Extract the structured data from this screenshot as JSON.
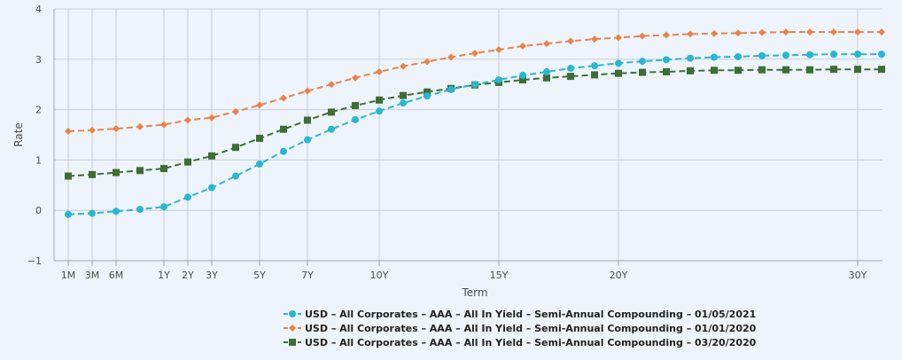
{
  "chart_data": {
    "type": "line",
    "xlabel": "Term",
    "ylabel": "Rate",
    "ylim": [
      -1,
      4
    ],
    "yticks": [
      -1,
      0,
      1,
      2,
      3,
      4
    ],
    "x_tick_labels": [
      "1M",
      "3M",
      "6M",
      "1Y",
      "2Y",
      "3Y",
      "5Y",
      "7Y",
      "10Y",
      "15Y",
      "20Y",
      "30Y"
    ],
    "grid": true,
    "legend_position": "bottom",
    "series": [
      {
        "name": "USD – All Corporates – AAA – All In Yield – Semi-Annual Compounding – 01/05/2021",
        "color": "#29b6d1",
        "marker": "circle",
        "values": [
          -0.08,
          -0.06,
          -0.02,
          0.02,
          0.07,
          0.26,
          0.45,
          0.68,
          0.92,
          1.17,
          1.4,
          1.61,
          1.8,
          1.97,
          2.13,
          2.27,
          2.4,
          2.5,
          2.59,
          2.68,
          2.75,
          2.82,
          2.87,
          2.92,
          2.96,
          2.99,
          3.02,
          3.04,
          3.05,
          3.07,
          3.08,
          3.09,
          3.1,
          3.1,
          3.1
        ]
      },
      {
        "name": "USD – All Corporates – AAA – All In Yield – Semi-Annual Compounding – 01/01/2020",
        "color": "#e8834a",
        "marker": "diamond",
        "values": [
          1.57,
          1.59,
          1.62,
          1.66,
          1.7,
          1.79,
          1.84,
          1.96,
          2.09,
          2.23,
          2.37,
          2.5,
          2.63,
          2.75,
          2.86,
          2.95,
          3.04,
          3.12,
          3.19,
          3.26,
          3.31,
          3.36,
          3.4,
          3.43,
          3.46,
          3.48,
          3.5,
          3.51,
          3.52,
          3.53,
          3.54,
          3.54,
          3.54,
          3.54,
          3.54
        ]
      },
      {
        "name": "USD – All Corporates – AAA – All In Yield – Semi-Annual Compounding – 03/20/2020",
        "color": "#3d6e35",
        "marker": "square",
        "values": [
          0.68,
          0.71,
          0.75,
          0.79,
          0.83,
          0.96,
          1.08,
          1.25,
          1.43,
          1.61,
          1.79,
          1.95,
          2.08,
          2.19,
          2.28,
          2.35,
          2.42,
          2.49,
          2.54,
          2.59,
          2.63,
          2.66,
          2.69,
          2.72,
          2.74,
          2.75,
          2.77,
          2.78,
          2.78,
          2.79,
          2.79,
          2.79,
          2.8,
          2.8,
          2.8
        ]
      }
    ]
  }
}
